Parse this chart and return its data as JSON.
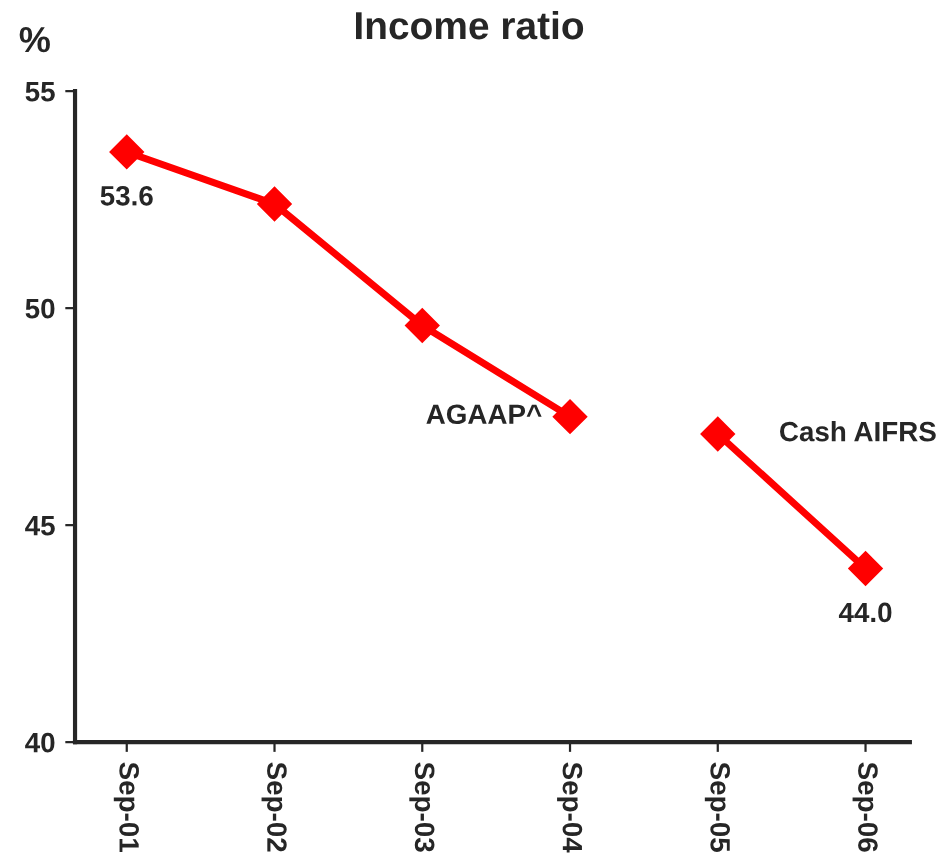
{
  "chart_data": {
    "type": "line",
    "title": "Income ratio",
    "ylabel": "%",
    "categories": [
      "Sep-01",
      "Sep-02",
      "Sep-03",
      "Sep-04",
      "Sep-05",
      "Sep-06"
    ],
    "series": [
      {
        "color": "#ff0000",
        "values": [
          53.6,
          52.4,
          49.6,
          47.5,
          null,
          null
        ],
        "value_labels": [
          "53.6",
          null,
          null,
          null,
          null,
          null
        ]
      },
      {
        "color": "#ff0000",
        "values": [
          null,
          null,
          null,
          null,
          47.1,
          44.0
        ],
        "value_labels": [
          null,
          null,
          null,
          null,
          null,
          "44.0"
        ]
      }
    ],
    "annotations": [
      {
        "text": "AGAAP^",
        "x": "Sep-04",
        "y": 47.5
      },
      {
        "text": "Cash AIFRS",
        "x": "Sep-05",
        "y": 47.1
      }
    ],
    "ylim": [
      40,
      55
    ],
    "yticks": [
      40,
      45,
      50,
      55
    ],
    "marker": "diamond",
    "line_style": "solid",
    "grid": false,
    "legend": false
  }
}
